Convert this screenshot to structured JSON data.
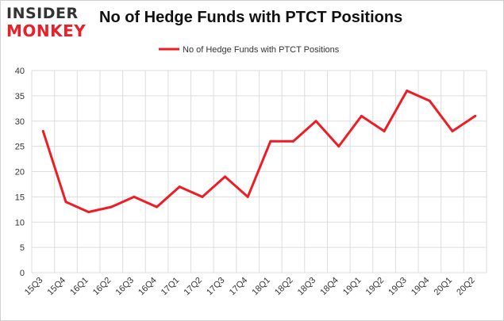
{
  "logo": {
    "line1": "INSIDER",
    "line2": "MONKEY"
  },
  "chart_data": {
    "type": "line",
    "title": "No of Hedge Funds with PTCT Positions",
    "categories": [
      "15Q3",
      "15Q4",
      "16Q1",
      "16Q2",
      "16Q3",
      "16Q4",
      "17Q1",
      "17Q2",
      "17Q3",
      "17Q4",
      "18Q1",
      "18Q2",
      "18Q3",
      "18Q4",
      "19Q1",
      "19Q2",
      "19Q3",
      "19Q4",
      "20Q1",
      "20Q2"
    ],
    "series": [
      {
        "name": "No of Hedge Funds with PTCT Positions",
        "values": [
          28,
          14,
          12,
          13,
          15,
          13,
          17,
          15,
          19,
          15,
          26,
          26,
          30,
          25,
          31,
          28,
          36,
          34,
          28,
          31
        ],
        "color": "#ee1c25"
      }
    ],
    "ylim": [
      0,
      40
    ],
    "yticks": [
      0,
      5,
      10,
      15,
      20,
      25,
      30,
      35,
      40
    ],
    "xlabel": "",
    "ylabel": "",
    "grid": true,
    "legend_position": "top-center",
    "colors": {
      "grid": "#dddddd",
      "axis_text": "#333333"
    }
  }
}
